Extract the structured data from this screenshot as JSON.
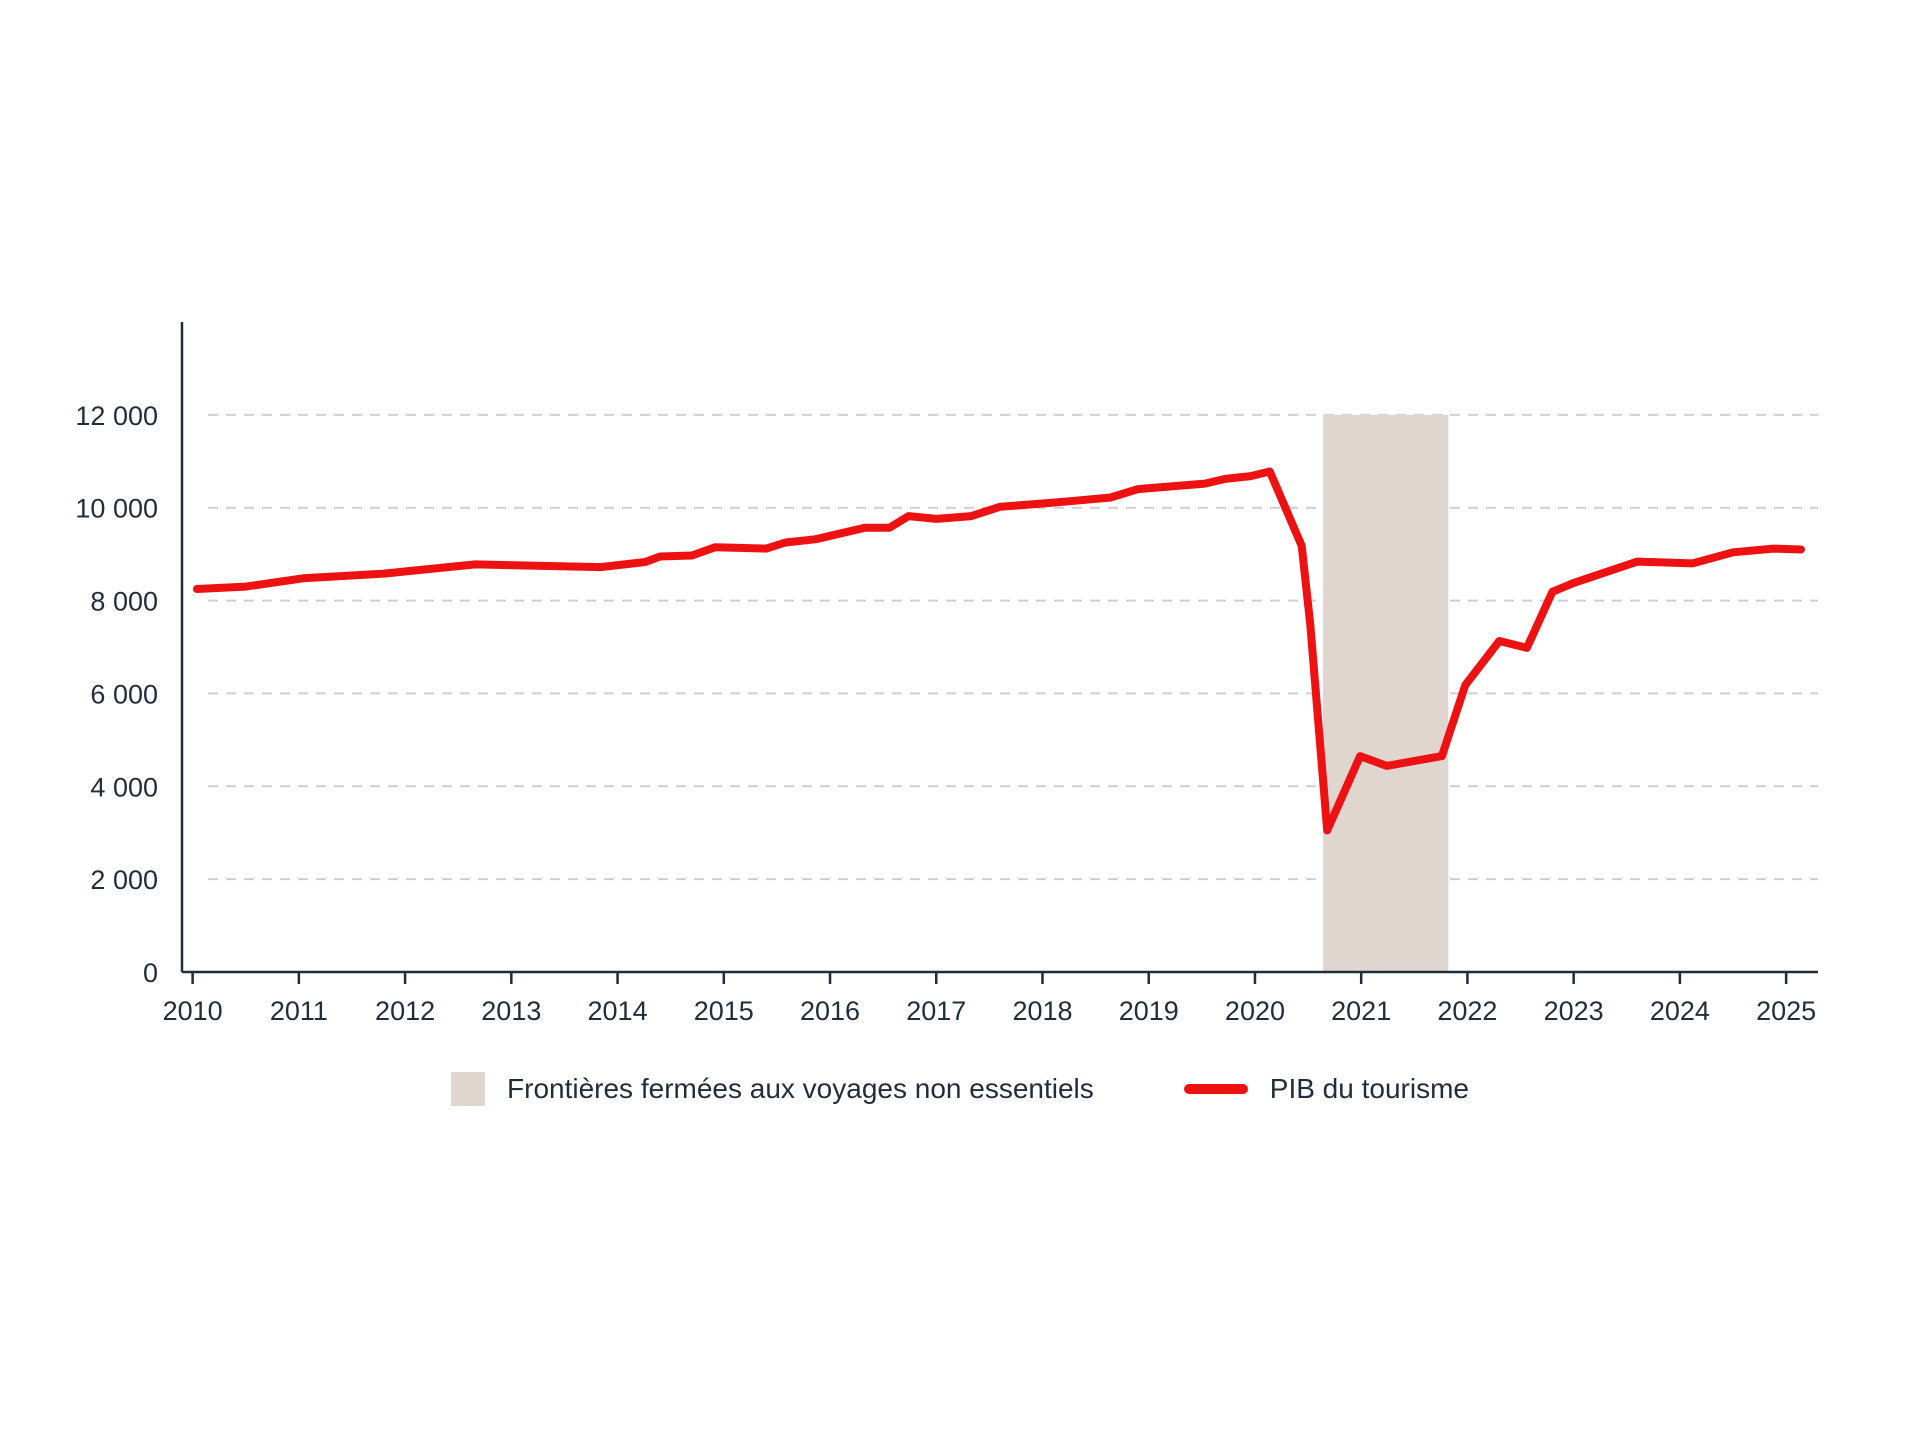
{
  "chart_data": {
    "type": "line",
    "title": "",
    "xlabel": "",
    "ylabel": "",
    "xlim": [
      2009.9,
      2025.3
    ],
    "ylim": [
      0,
      14000
    ],
    "yticks": [
      0,
      2000,
      4000,
      6000,
      8000,
      10000,
      12000
    ],
    "ytick_labels": [
      "0",
      "2 000",
      "4 000",
      "6 000",
      "8 000",
      "10 000",
      "12 000"
    ],
    "xticks": [
      2010,
      2011,
      2012,
      2013,
      2014,
      2015,
      2016,
      2017,
      2018,
      2019,
      2020,
      2021,
      2022,
      2023,
      2024,
      2025
    ],
    "xtick_labels": [
      "2010",
      "2011",
      "2012",
      "2013",
      "2014",
      "2015",
      "2016",
      "2017",
      "2018",
      "2019",
      "2020",
      "2021",
      "2022",
      "2023",
      "2024",
      "2025"
    ],
    "grid": "horizontal dashed",
    "legend_position": "bottom",
    "shaded_region": {
      "name": "Frontières fermées aux voyages non essentiels",
      "x": [
        2020.64,
        2021.82
      ],
      "y": [
        0,
        12000
      ],
      "color": "#e0d6cf"
    },
    "series": [
      {
        "name": "PIB du tourisme",
        "color": "#ee1111",
        "x": [
          2010.04,
          2010.5,
          2011.04,
          2011.8,
          2012.66,
          2013.84,
          2014.26,
          2014.4,
          2014.7,
          2014.92,
          2015.4,
          2015.58,
          2015.86,
          2016.33,
          2016.56,
          2016.74,
          2017.0,
          2017.33,
          2017.6,
          2018.0,
          2018.3,
          2018.64,
          2018.9,
          2019.53,
          2019.72,
          2019.96,
          2020.14,
          2020.44,
          2020.52,
          2020.68,
          2020.99,
          2021.24,
          2021.76,
          2021.98,
          2022.3,
          2022.56,
          2022.8,
          2023.0,
          2023.6,
          2024.12,
          2024.5,
          2024.88,
          2025.14
        ],
        "y": [
          8250,
          8300,
          8480,
          8580,
          8780,
          8720,
          8830,
          8950,
          8970,
          9150,
          9120,
          9250,
          9320,
          9570,
          9570,
          9820,
          9760,
          9820,
          10020,
          10090,
          10150,
          10220,
          10400,
          10520,
          10620,
          10680,
          10780,
          9180,
          7500,
          3050,
          4650,
          4440,
          4650,
          6180,
          7130,
          6980,
          8190,
          8380,
          8840,
          8800,
          9040,
          9120,
          9100
        ]
      }
    ]
  },
  "legend": {
    "shaded_label": "Frontières fermées aux voyages non essentiels",
    "line_label": "PIB du tourisme"
  }
}
